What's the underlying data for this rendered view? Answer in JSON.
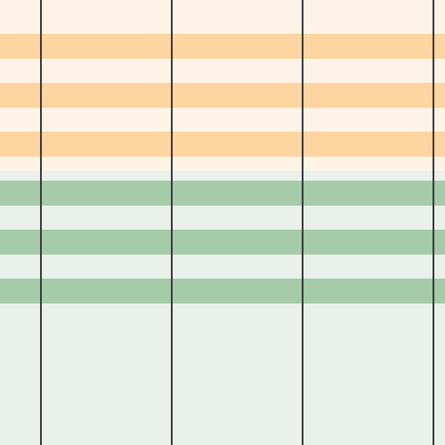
{
  "colors": {
    "top_background": "#fef3e6",
    "orange_band": "#fed5a0",
    "bottom_background": "#e9f1ea",
    "green_band": "#a5cba9",
    "line": "#3a3a3a"
  },
  "orange_band_count": 3,
  "green_band_count": 3,
  "vertical_line_count": 4
}
